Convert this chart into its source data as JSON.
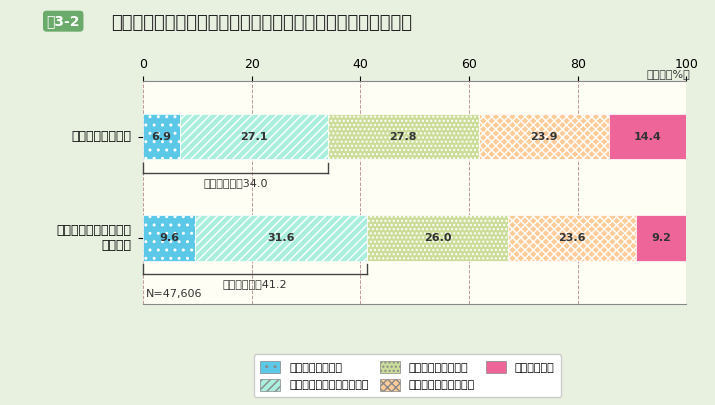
{
  "title": "テレワークにおける業務効率化、コミュニケーションについて",
  "fig_label": "図3-2",
  "unit_label": "（単位：%）",
  "n_label": "N=47,606",
  "categories": [
    "効率的に業務遂行",
    "コミュニケーションに\n支障なし"
  ],
  "series": [
    {
      "label": "まったくその通り",
      "values": [
        6.9,
        9.6
      ],
      "color": "#5bc8e8",
      "hatch": ".."
    },
    {
      "label": "どちらかといえばその通り",
      "values": [
        27.1,
        31.6
      ],
      "color": "#aaeedd",
      "hatch": "////"
    },
    {
      "label": "どちらともいえない",
      "values": [
        27.8,
        26.0
      ],
      "color": "#ccdd99",
      "hatch": "...."
    },
    {
      "label": "どちらかといえば違う",
      "values": [
        23.9,
        23.6
      ],
      "color": "#ffcc99",
      "hatch": "xxxx"
    },
    {
      "label": "まったく違う",
      "values": [
        14.4,
        9.2
      ],
      "color": "#ee6699",
      "hatch": "####"
    }
  ],
  "affirmative_labels": [
    "肯定的な回答34.0",
    "肯定的な回答41.2"
  ],
  "affirmative_ends": [
    34.0,
    41.2
  ],
  "xlim": [
    0,
    100
  ],
  "xticks": [
    0,
    20,
    40,
    60,
    80,
    100
  ],
  "background_color": "#e8f0e0",
  "plot_bg_color": "#fffef5",
  "bar_height": 0.45,
  "title_fontsize": 13,
  "label_fontsize": 9,
  "tick_fontsize": 9
}
